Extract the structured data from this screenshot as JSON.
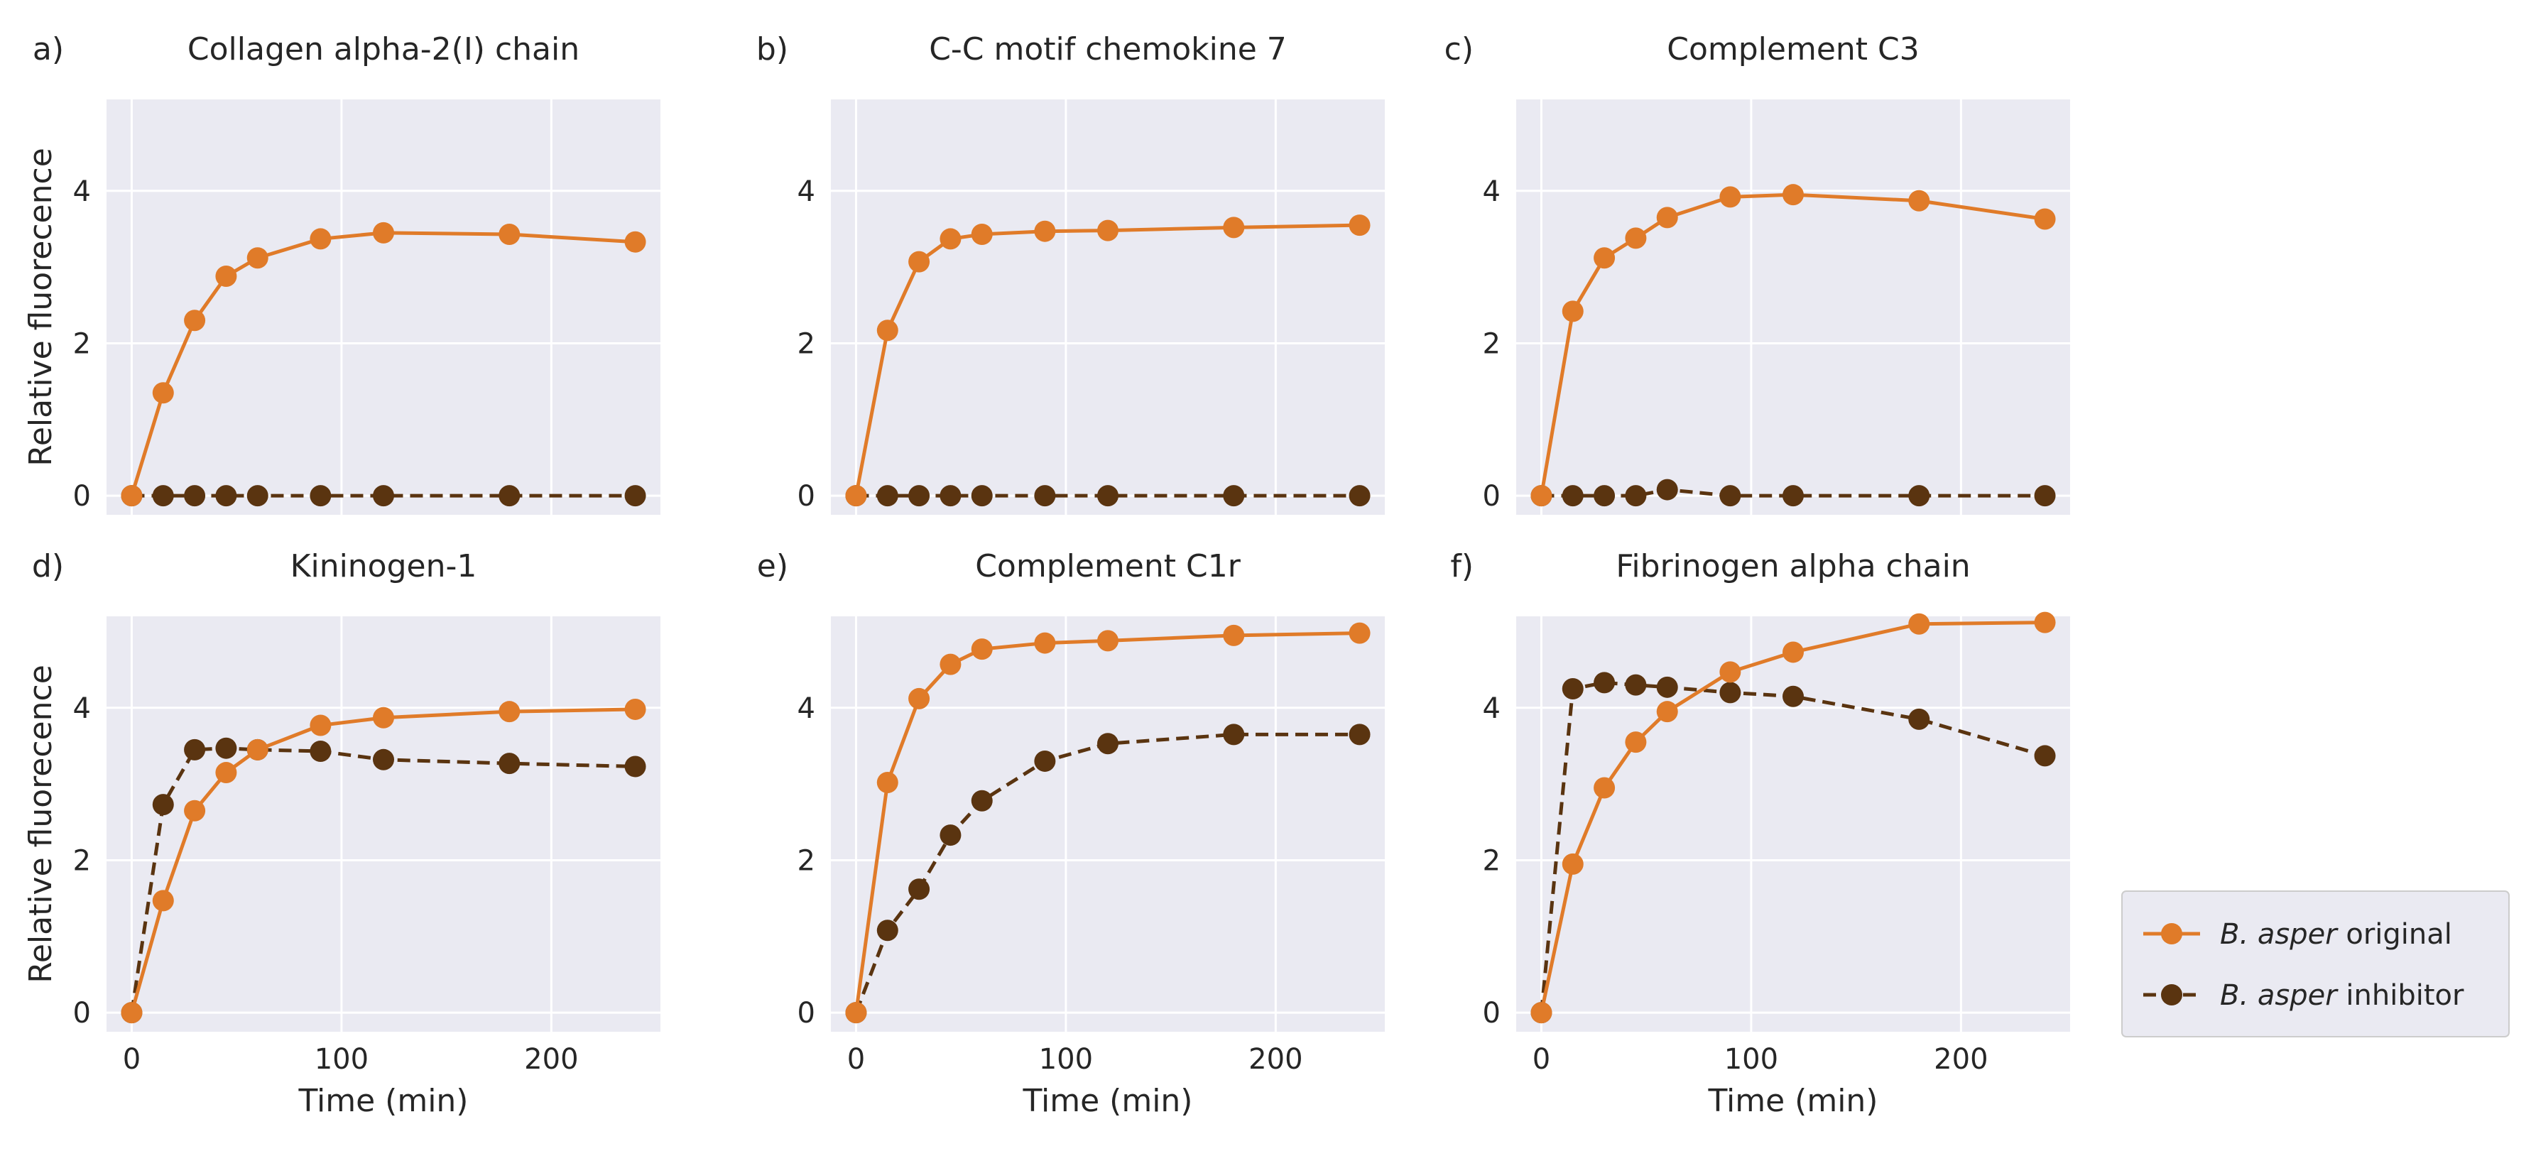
{
  "chart_data": {
    "type": "line",
    "shared": {
      "xlabel": "Time (min)",
      "ylabel": "Relative fluorecence",
      "xlim": [
        -12,
        252
      ],
      "ylim": [
        -0.25,
        5.2
      ],
      "xticks": [
        0,
        100,
        200
      ],
      "yticks": [
        0,
        2,
        4
      ],
      "x": [
        0,
        15,
        30,
        45,
        60,
        90,
        120,
        180,
        240
      ]
    },
    "legend": {
      "placement": "right",
      "entries": [
        {
          "key": "original",
          "italic": "B. asper",
          "rest": " original",
          "color": "#e07b29",
          "dash": "solid"
        },
        {
          "key": "inhibitor",
          "italic": "B. asper",
          "rest": " inhibitor",
          "color": "#5a3410",
          "dash": "dashed"
        }
      ]
    },
    "panels": [
      {
        "label": "a)",
        "title": "Collagen alpha-2(I) chain",
        "series": [
          {
            "name": "B. asper original",
            "values": [
              0,
              1.35,
              2.3,
              2.88,
              3.12,
              3.37,
              3.45,
              3.43,
              3.33
            ]
          },
          {
            "name": "B. asper inhibitor",
            "values": [
              0,
              0,
              0,
              0,
              0,
              0,
              0,
              0,
              0
            ]
          }
        ]
      },
      {
        "label": "b)",
        "title": "C-C motif chemokine 7",
        "series": [
          {
            "name": "B. asper original",
            "values": [
              0,
              2.17,
              3.07,
              3.37,
              3.43,
              3.47,
              3.48,
              3.52,
              3.55
            ]
          },
          {
            "name": "B. asper inhibitor",
            "values": [
              0,
              0,
              0,
              0,
              0,
              0,
              0,
              0,
              0
            ]
          }
        ]
      },
      {
        "label": "c)",
        "title": "Complement C3",
        "series": [
          {
            "name": "B. asper original",
            "values": [
              0,
              2.42,
              3.12,
              3.38,
              3.65,
              3.92,
              3.95,
              3.87,
              3.63
            ]
          },
          {
            "name": "B. asper inhibitor",
            "values": [
              0,
              0,
              0,
              0,
              0.08,
              0,
              0,
              0,
              0
            ]
          }
        ]
      },
      {
        "label": "d)",
        "title": "Kininogen-1",
        "series": [
          {
            "name": "B. asper original",
            "values": [
              0,
              1.47,
              2.65,
              3.15,
              3.45,
              3.77,
              3.87,
              3.95,
              3.98
            ]
          },
          {
            "name": "B. asper inhibitor",
            "values": [
              0,
              2.73,
              3.45,
              3.47,
              3.45,
              3.43,
              3.32,
              3.27,
              3.23
            ]
          }
        ]
      },
      {
        "label": "e)",
        "title": "Complement C1r",
        "series": [
          {
            "name": "B. asper original",
            "values": [
              0,
              3.02,
              4.12,
              4.57,
              4.77,
              4.85,
              4.88,
              4.95,
              4.98
            ]
          },
          {
            "name": "B. asper inhibitor",
            "values": [
              0,
              1.08,
              1.62,
              2.33,
              2.78,
              3.3,
              3.53,
              3.65,
              3.65
            ]
          }
        ]
      },
      {
        "label": "f)",
        "title": "Fibrinogen alpha chain",
        "series": [
          {
            "name": "B. asper original",
            "values": [
              0,
              1.95,
              2.95,
              3.55,
              3.95,
              4.47,
              4.73,
              5.1,
              5.12
            ]
          },
          {
            "name": "B. asper inhibitor",
            "values": [
              0,
              4.25,
              4.33,
              4.3,
              4.27,
              4.2,
              4.15,
              3.85,
              3.37
            ]
          }
        ]
      }
    ]
  }
}
